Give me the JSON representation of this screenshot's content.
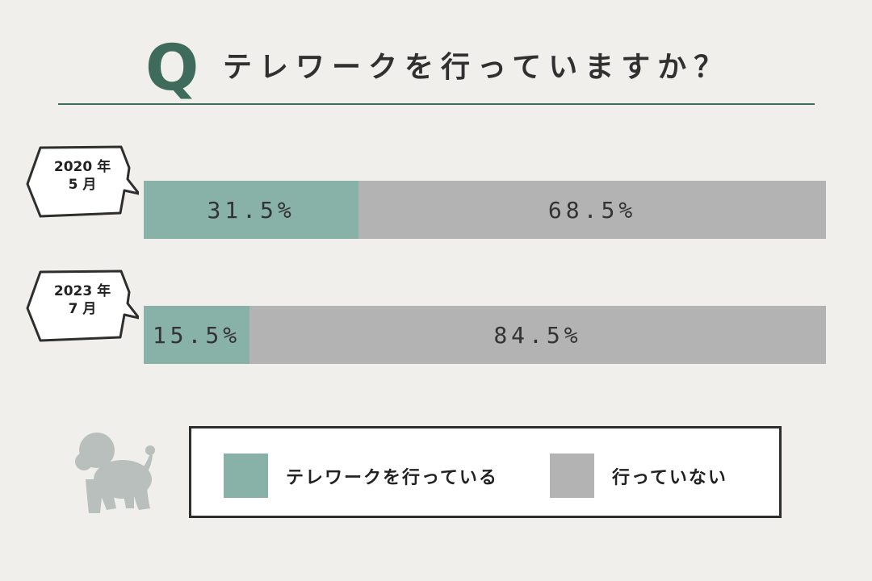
{
  "header": {
    "q_letter": "Q",
    "question": "テレワークを行っていますか？"
  },
  "chart_data": {
    "type": "bar",
    "orientation": "horizontal",
    "stacked": true,
    "normalized_to": 100,
    "categories": [
      "2020 年\n5 月",
      "2023 年\n7 月"
    ],
    "category_lines": [
      [
        "2020 年",
        "5 月"
      ],
      [
        "2023 年",
        "7 月"
      ]
    ],
    "series": [
      {
        "name": "テレワークを行っている",
        "values": [
          31.5,
          15.5
        ],
        "color": "#88b2a7"
      },
      {
        "name": "行っていない",
        "values": [
          68.5,
          84.5
        ],
        "color": "#b3b3b3"
      }
    ],
    "value_suffix": "%",
    "grid": false,
    "legend_position": "bottom"
  },
  "icons": {
    "mascot": "poodle-silhouette-icon"
  }
}
